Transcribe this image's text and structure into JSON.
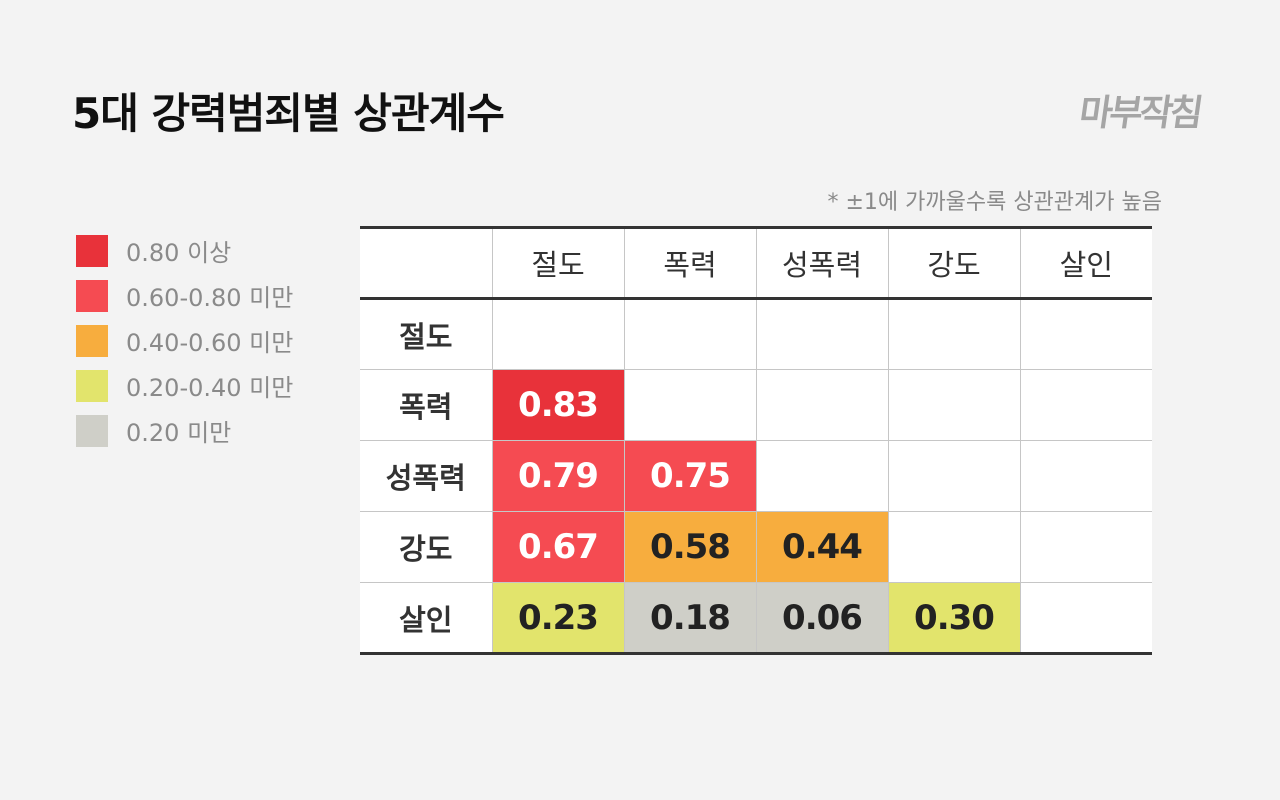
{
  "title": "5대 강력범죄별 상관계수",
  "logo_text": "마부작침",
  "note": "* ±1에 가까울수록 상관관계가 높음",
  "legend": [
    {
      "label": "0.80 이상",
      "color": "#e8323a"
    },
    {
      "label": "0.60-0.80 미만",
      "color": "#f54b52"
    },
    {
      "label": "0.40-0.60 미만",
      "color": "#f7ad3e"
    },
    {
      "label": "0.20-0.40 미만",
      "color": "#e2e46c"
    },
    {
      "label": "0.20 미만",
      "color": "#cfcfc8"
    }
  ],
  "chart_data": {
    "type": "heatmap",
    "title": "5대 강력범죄별 상관계수",
    "note": "* ±1에 가까울수록 상관관계가 높음",
    "categories": [
      "절도",
      "폭력",
      "성폭력",
      "강도",
      "살인"
    ],
    "lower_triangle": [
      [],
      [
        0.83
      ],
      [
        0.79,
        0.75
      ],
      [
        0.67,
        0.58,
        0.44
      ],
      [
        0.23,
        0.18,
        0.06,
        0.3
      ]
    ],
    "cell_text": [
      [],
      [
        "0.83"
      ],
      [
        "0.79",
        "0.75"
      ],
      [
        "0.67",
        "0.58",
        "0.44"
      ],
      [
        "0.23",
        "0.18",
        "0.06",
        "0.30"
      ]
    ],
    "thresholds": [
      0.8,
      0.6,
      0.4,
      0.2
    ]
  }
}
